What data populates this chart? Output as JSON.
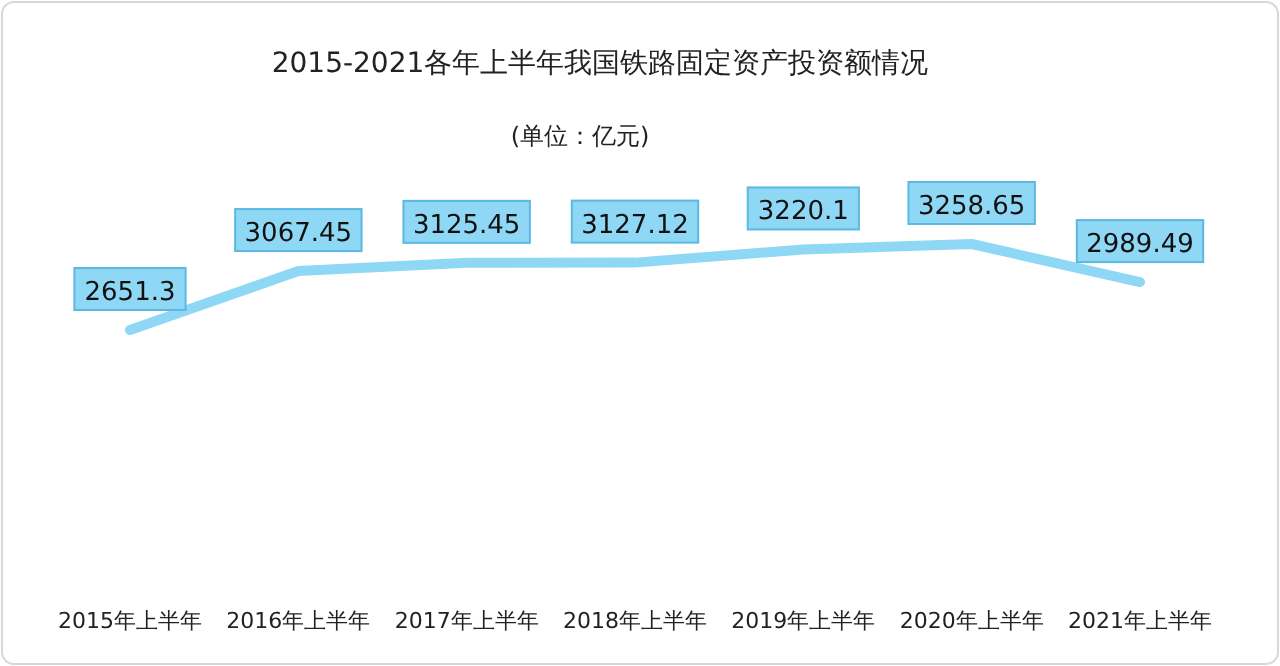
{
  "chart_data": {
    "type": "line",
    "title": "2015-2021各年上半年我国铁路固定资产投资额情况",
    "subtitle": "(单位：亿元)",
    "categories": [
      "2015年上半年",
      "2016年上半年",
      "2017年上半年",
      "2018年上半年",
      "2019年上半年",
      "2020年上半年",
      "2021年上半年"
    ],
    "values": [
      2651.3,
      3067.45,
      3125.45,
      3127.12,
      3220.1,
      3258.65,
      2989.49
    ],
    "color": "#8fd8f5",
    "data_labels": true,
    "marker": "none"
  }
}
